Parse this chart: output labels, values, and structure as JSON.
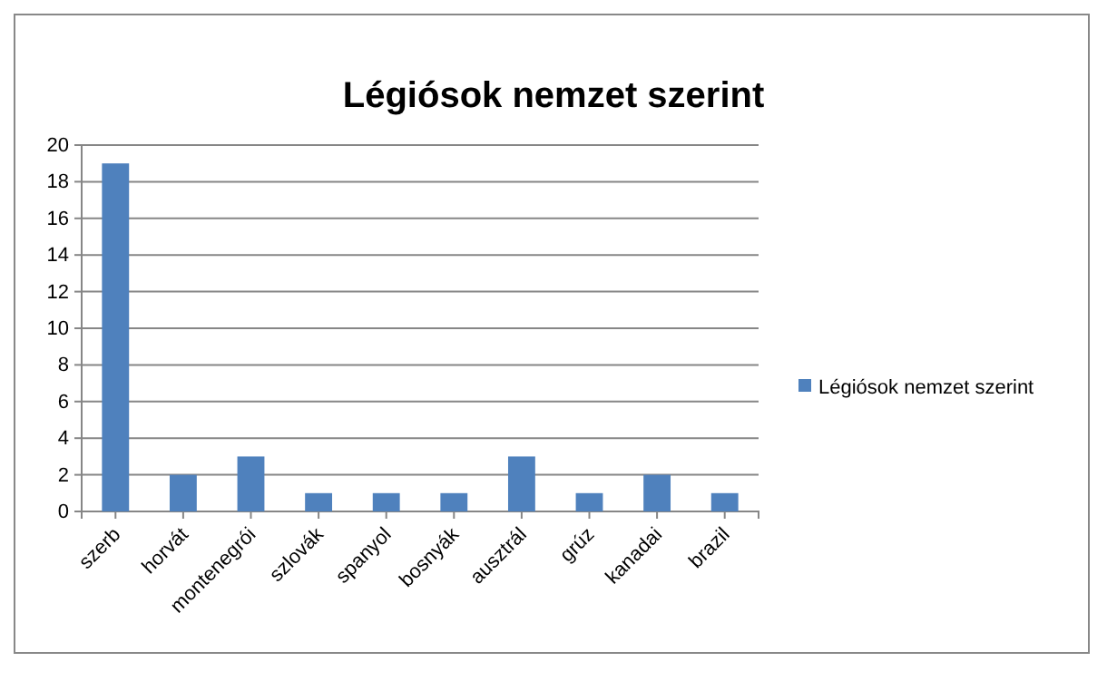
{
  "chart_data": {
    "type": "bar",
    "title": "Légiósok nemzet szerint",
    "categories": [
      "szerb",
      "horvát",
      "montenegrói",
      "szlovák",
      "spanyol",
      "bosnyák",
      "ausztrál",
      "grúz",
      "kanadai",
      "brazil"
    ],
    "series": [
      {
        "name": "Légiósok nemzet szerint",
        "color": "#4f81bd",
        "values": [
          19,
          2,
          3,
          1,
          1,
          1,
          3,
          1,
          2,
          1
        ]
      }
    ],
    "ylim": [
      0,
      20
    ],
    "yticks": [
      0,
      2,
      4,
      6,
      8,
      10,
      12,
      14,
      16,
      18,
      20
    ],
    "grid": "y",
    "legend": "right"
  }
}
